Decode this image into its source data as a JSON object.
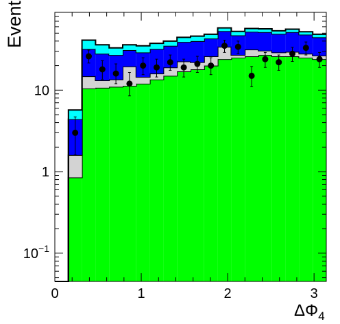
{
  "chart_data": {
    "type": "bar",
    "title": "",
    "xlabel": "ΔΦ",
    "xlabel_sub": "4",
    "ylabel": "Events",
    "y_scale": "log",
    "xlim": [
      0,
      3.1416
    ],
    "ylim": [
      0.045,
      90
    ],
    "x_ticks": [
      {
        "value": 0,
        "label": "0"
      },
      {
        "value": 1,
        "label": "1"
      },
      {
        "value": 2,
        "label": "2"
      },
      {
        "value": 3,
        "label": "3"
      }
    ],
    "y_ticks": [
      {
        "value": 0.1,
        "label": "10",
        "sup": "−1"
      },
      {
        "value": 1,
        "label": "1",
        "sup": ""
      },
      {
        "value": 10,
        "label": "10",
        "sup": ""
      }
    ],
    "grid": false,
    "bin_edges": [
      0,
      0.1571,
      0.3142,
      0.4712,
      0.6283,
      0.7854,
      0.9425,
      1.0996,
      1.2566,
      1.4137,
      1.5708,
      1.7279,
      1.885,
      2.042,
      2.1991,
      2.3562,
      2.5133,
      2.6704,
      2.8274,
      2.9845,
      3.1416
    ],
    "stack": [
      {
        "color": "#00ff00",
        "values": [
          0,
          0.85,
          10.5,
          10.7,
          11,
          11.3,
          12,
          13.5,
          15,
          17,
          18,
          20,
          24,
          25,
          26,
          27,
          26,
          26,
          25,
          24
        ]
      },
      {
        "color": "#d3d3d3",
        "values": [
          0,
          0.75,
          4.3,
          2.5,
          2.5,
          8.2,
          2.5,
          2.5,
          4.0,
          5.5,
          4.0,
          6.0,
          10.0,
          2.0,
          5.5,
          3.5,
          3.0,
          3.5,
          3.0,
          2.5
        ]
      },
      {
        "color": "#0000ff",
        "values": [
          0,
          2.8,
          17.2,
          14.8,
          13.5,
          11.5,
          14.5,
          16.0,
          16.0,
          16.5,
          18.0,
          17.0,
          19.0,
          20.0,
          20.5,
          21.0,
          20.0,
          22.0,
          20.0,
          18.0
        ]
      },
      {
        "color": "#00ffff",
        "values": [
          0,
          1.3,
          9,
          8,
          6,
          5,
          6,
          5.5,
          5,
          5.5,
          6,
          5.5,
          5,
          5.5,
          5,
          5,
          4.5,
          4.5,
          4,
          4
        ]
      }
    ],
    "data_points": [
      {
        "x": 0.2356,
        "y": 3.0,
        "lo": 1.6,
        "hi": 4.7
      },
      {
        "x": 0.3927,
        "y": 26.0,
        "lo": 21.5,
        "hi": 31.0
      },
      {
        "x": 0.5498,
        "y": 18.0,
        "lo": 13.5,
        "hi": 23.0
      },
      {
        "x": 0.7069,
        "y": 16.0,
        "lo": 12.0,
        "hi": 21.0
      },
      {
        "x": 0.8639,
        "y": 12.0,
        "lo": 8.5,
        "hi": 16.5
      },
      {
        "x": 1.021,
        "y": 20.0,
        "lo": 15.5,
        "hi": 25.0
      },
      {
        "x": 1.1781,
        "y": 19.0,
        "lo": 14.5,
        "hi": 24.0
      },
      {
        "x": 1.3352,
        "y": 22.0,
        "lo": 17.5,
        "hi": 27.0
      },
      {
        "x": 1.4923,
        "y": 19.0,
        "lo": 14.5,
        "hi": 24.0
      },
      {
        "x": 1.6493,
        "y": 21.0,
        "lo": 16.5,
        "hi": 26.0
      },
      {
        "x": 1.8064,
        "y": 20.0,
        "lo": 15.5,
        "hi": 25.0
      },
      {
        "x": 1.9635,
        "y": 35.0,
        "lo": 29.0,
        "hi": 41.0
      },
      {
        "x": 2.1206,
        "y": 34.0,
        "lo": 28.0,
        "hi": 40.0
      },
      {
        "x": 2.2777,
        "y": 15.0,
        "lo": 11.0,
        "hi": 19.5
      },
      {
        "x": 2.4347,
        "y": 24.0,
        "lo": 19.0,
        "hi": 29.0
      },
      {
        "x": 2.5918,
        "y": 22.0,
        "lo": 17.5,
        "hi": 27.0
      },
      {
        "x": 2.7489,
        "y": 28.0,
        "lo": 22.5,
        "hi": 33.5
      },
      {
        "x": 2.906,
        "y": 33.0,
        "lo": 27.0,
        "hi": 39.0
      },
      {
        "x": 3.063,
        "y": 24.0,
        "lo": 19.0,
        "hi": 29.0
      }
    ]
  }
}
